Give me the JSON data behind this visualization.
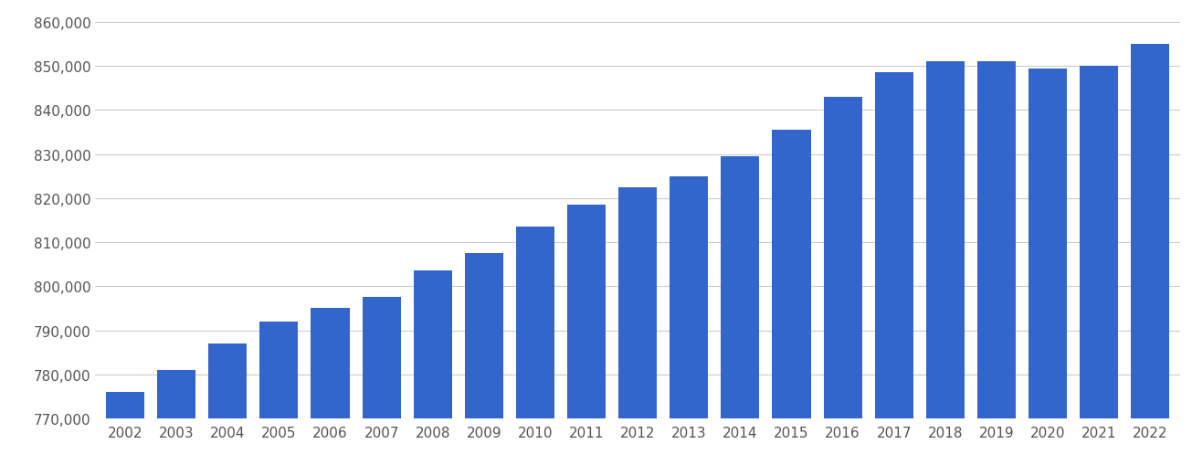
{
  "years": [
    2002,
    2003,
    2004,
    2005,
    2006,
    2007,
    2008,
    2009,
    2010,
    2011,
    2012,
    2013,
    2014,
    2015,
    2016,
    2017,
    2018,
    2019,
    2020,
    2021,
    2022
  ],
  "values": [
    776000,
    781000,
    787000,
    792000,
    795000,
    797500,
    803500,
    807500,
    813500,
    818500,
    822500,
    825000,
    829500,
    835500,
    843000,
    848500,
    851000,
    851000,
    849500,
    850000,
    855000
  ],
  "bar_color": "#3366cc",
  "background_color": "#ffffff",
  "grid_color": "#cccccc",
  "ylim_min": 770000,
  "ylim_max": 862000,
  "ytick_step": 10000,
  "ytick_start": 770000,
  "ytick_end": 860000,
  "tick_label_color": "#555555",
  "tick_label_fontsize": 11,
  "bar_width": 0.75
}
